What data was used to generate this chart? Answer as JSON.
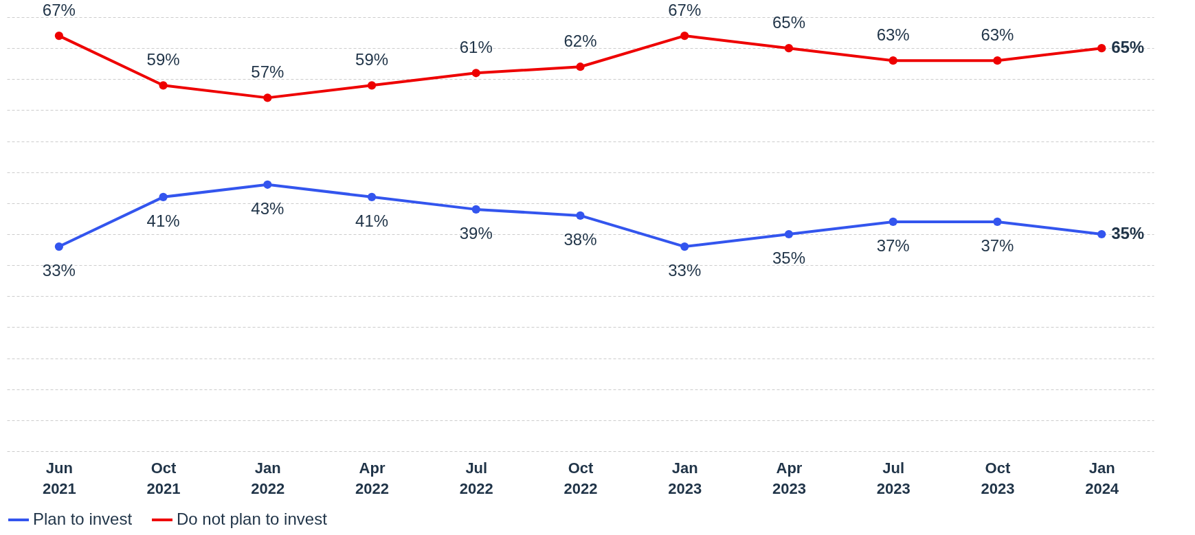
{
  "chart_data": {
    "type": "line",
    "categories": [
      "Jun 2021",
      "Oct 2021",
      "Jan 2022",
      "Apr 2022",
      "Jul 2022",
      "Oct 2022",
      "Jan 2023",
      "Apr 2023",
      "Jul 2023",
      "Oct 2023",
      "Jan 2024"
    ],
    "series": [
      {
        "name": "Plan to invest",
        "color": "#3355ee",
        "values": [
          33,
          41,
          43,
          41,
          39,
          38,
          33,
          35,
          37,
          37,
          35
        ],
        "value_labels": [
          "33%",
          "41%",
          "43%",
          "41%",
          "39%",
          "38%",
          "33%",
          "35%",
          "37%",
          "37%",
          "35%"
        ]
      },
      {
        "name": "Do not plan to invest",
        "color": "#ee0000",
        "values": [
          67,
          59,
          57,
          59,
          61,
          62,
          67,
          65,
          63,
          63,
          65
        ],
        "value_labels": [
          "67%",
          "59%",
          "57%",
          "59%",
          "61%",
          "62%",
          "67%",
          "65%",
          "63%",
          "63%",
          "65%"
        ]
      }
    ],
    "tick_labels": "x",
    "grid": "y",
    "legend": "bottom",
    "marker": "circle",
    "line_style": "solid"
  }
}
